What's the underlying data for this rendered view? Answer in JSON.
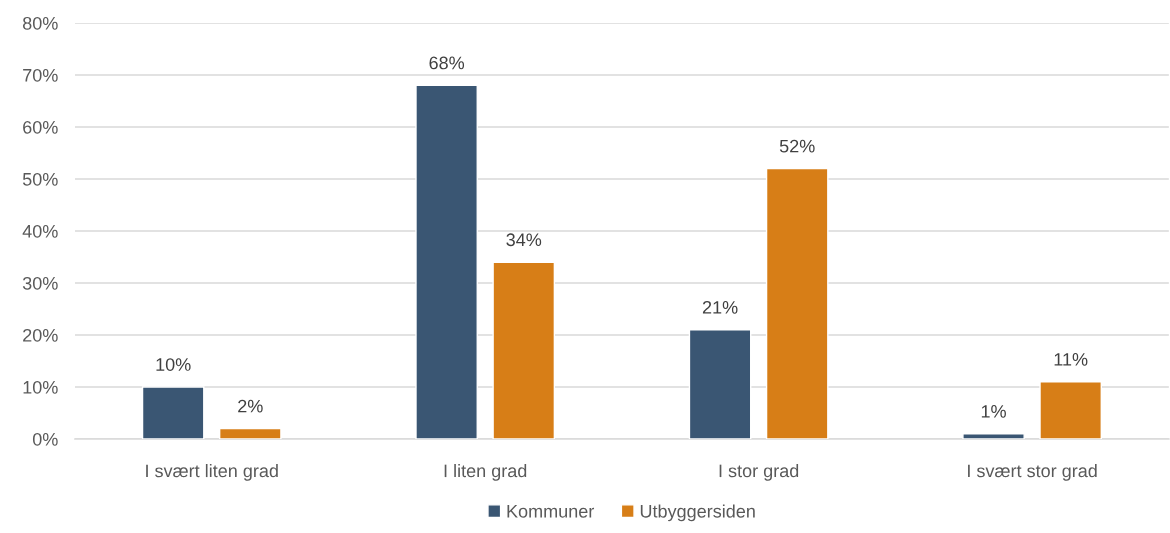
{
  "chart_data": {
    "type": "bar",
    "categories": [
      "I svært liten grad",
      "I liten grad",
      "I stor grad",
      "I svært stor grad"
    ],
    "series": [
      {
        "name": "Kommuner",
        "color": "#3a5673",
        "values": [
          10,
          68,
          21,
          1
        ],
        "value_labels": [
          "10%",
          "68%",
          "21%",
          "1%"
        ]
      },
      {
        "name": "Utbyggersiden",
        "color": "#d77e17",
        "values": [
          2,
          34,
          52,
          11
        ],
        "value_labels": [
          "2%",
          "34%",
          "52%",
          "11%"
        ]
      }
    ],
    "ylim": [
      0,
      80
    ],
    "yticks": [
      {
        "value": 0,
        "label": "0%"
      },
      {
        "value": 10,
        "label": "10%"
      },
      {
        "value": 20,
        "label": "20%"
      },
      {
        "value": 30,
        "label": "30%"
      },
      {
        "value": 40,
        "label": "40%"
      },
      {
        "value": 50,
        "label": "50%"
      },
      {
        "value": 60,
        "label": "60%"
      },
      {
        "value": 70,
        "label": "70%"
      },
      {
        "value": 80,
        "label": "80%"
      }
    ],
    "grid": "y",
    "legend": "bottom"
  }
}
